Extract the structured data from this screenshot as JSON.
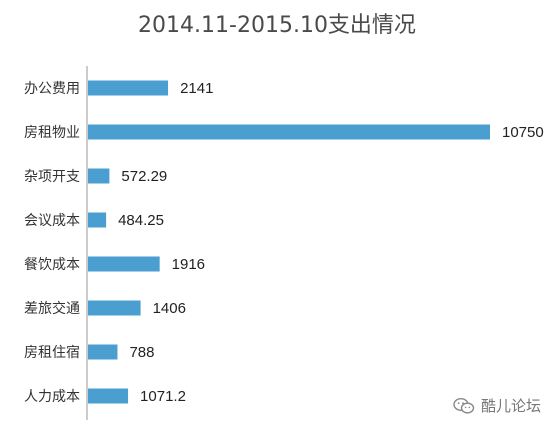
{
  "chart_data": {
    "type": "bar",
    "orientation": "horizontal",
    "title": "2014.11-2015.10支出情况",
    "categories": [
      "办公费用",
      "房租物业",
      "杂项开支",
      "会议成本",
      "餐饮成本",
      "差旅交通",
      "房租住宿",
      "人力成本"
    ],
    "values": [
      2141,
      10750,
      572.29,
      484.25,
      1916,
      1406,
      788,
      1071.2
    ],
    "value_labels": [
      "2141",
      "10750",
      "572.29",
      "484.25",
      "1916",
      "1406",
      "788",
      "1071.2"
    ],
    "xlim": [
      0,
      10750
    ],
    "grid": false,
    "legend": "none",
    "bar_color": "#4a9fd0"
  },
  "watermark": {
    "icon": "wechat-icon",
    "text": "酷儿论坛"
  }
}
